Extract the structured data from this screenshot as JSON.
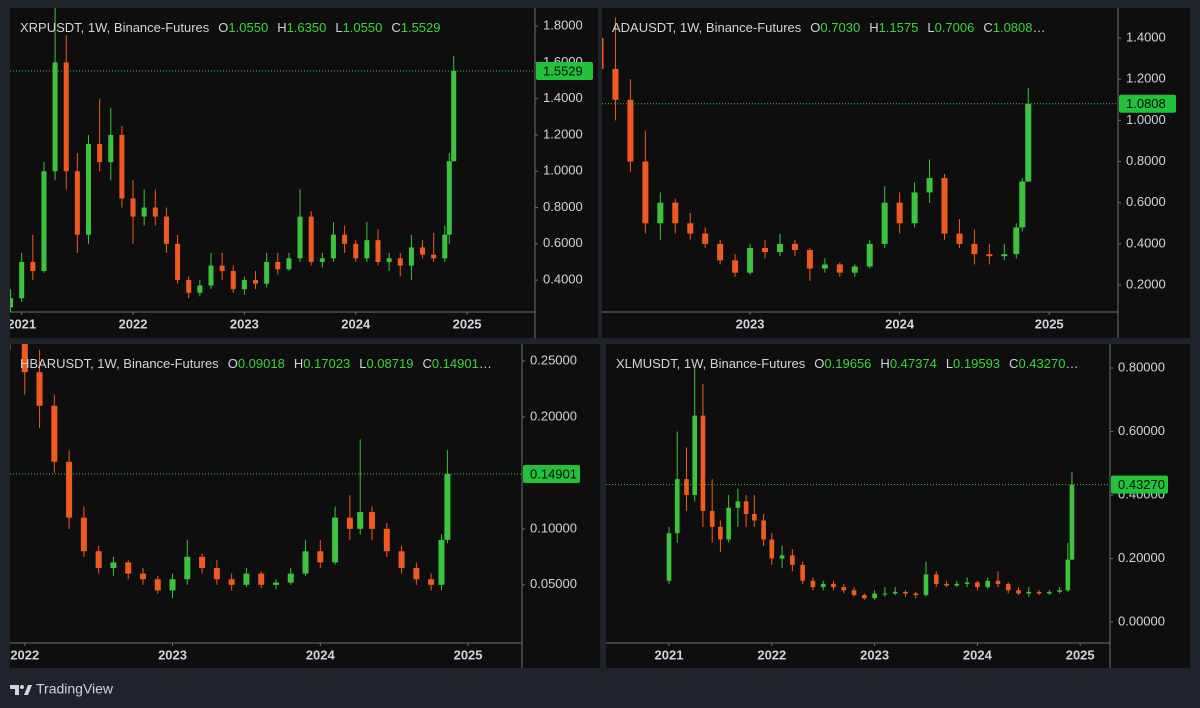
{
  "chart_data": [
    {
      "type": "candlestick",
      "title": "XRPUSDT, 1W, Binance-Futures",
      "ohlc": [
        {
          "key": "O",
          "value": 1.055,
          "label": "1.0550"
        },
        {
          "key": "H",
          "value": 1.635,
          "label": "1.6350"
        },
        {
          "key": "L",
          "value": 1.055,
          "label": "1.0550"
        },
        {
          "key": "C",
          "value": 1.5529,
          "label": "1.5529"
        }
      ],
      "last_price": {
        "value": 1.5529,
        "label": "1.5529"
      },
      "x": [
        2020.9,
        2021.0,
        2021.1,
        2021.2,
        2021.3,
        2021.4,
        2021.5,
        2021.6,
        2021.7,
        2021.8,
        2021.9,
        2022.0,
        2022.1,
        2022.2,
        2022.3,
        2022.4,
        2022.5,
        2022.6,
        2022.7,
        2022.8,
        2022.9,
        2023.0,
        2023.1,
        2023.2,
        2023.3,
        2023.4,
        2023.5,
        2023.6,
        2023.7,
        2023.8,
        2023.9,
        2024.0,
        2024.1,
        2024.2,
        2024.3,
        2024.4,
        2024.5,
        2024.6,
        2024.7,
        2024.8,
        2024.84,
        2024.88
      ],
      "open": [
        0.25,
        0.3,
        0.5,
        0.45,
        1.0,
        1.6,
        1.0,
        0.65,
        1.15,
        1.05,
        1.2,
        0.85,
        0.75,
        0.8,
        0.75,
        0.6,
        0.4,
        0.33,
        0.37,
        0.48,
        0.45,
        0.35,
        0.4,
        0.38,
        0.5,
        0.46,
        0.52,
        0.75,
        0.5,
        0.52,
        0.65,
        0.6,
        0.52,
        0.62,
        0.5,
        0.52,
        0.48,
        0.58,
        0.54,
        0.52,
        0.65,
        1.055
      ],
      "high": [
        0.35,
        0.55,
        0.65,
        1.05,
        1.9,
        1.75,
        1.1,
        1.2,
        1.4,
        1.35,
        1.25,
        0.95,
        0.9,
        0.9,
        0.8,
        0.65,
        0.42,
        0.4,
        0.55,
        0.55,
        0.48,
        0.42,
        0.45,
        0.55,
        0.55,
        0.55,
        0.9,
        0.78,
        0.55,
        0.72,
        0.7,
        0.62,
        0.72,
        0.68,
        0.55,
        0.55,
        0.65,
        0.62,
        0.66,
        0.7,
        1.1,
        1.635
      ],
      "low": [
        0.22,
        0.28,
        0.4,
        0.44,
        0.95,
        0.9,
        0.55,
        0.6,
        1.0,
        0.95,
        0.8,
        0.6,
        0.7,
        0.7,
        0.55,
        0.38,
        0.3,
        0.31,
        0.35,
        0.4,
        0.33,
        0.32,
        0.35,
        0.36,
        0.43,
        0.45,
        0.5,
        0.48,
        0.47,
        0.5,
        0.55,
        0.5,
        0.5,
        0.48,
        0.45,
        0.42,
        0.4,
        0.52,
        0.5,
        0.5,
        0.6,
        1.055
      ],
      "close": [
        0.3,
        0.5,
        0.45,
        1.0,
        1.6,
        1.0,
        0.65,
        1.15,
        1.05,
        1.2,
        0.85,
        0.75,
        0.8,
        0.75,
        0.6,
        0.4,
        0.33,
        0.37,
        0.48,
        0.45,
        0.35,
        0.4,
        0.38,
        0.5,
        0.46,
        0.52,
        0.75,
        0.5,
        0.52,
        0.65,
        0.6,
        0.52,
        0.62,
        0.5,
        0.52,
        0.48,
        0.58,
        0.54,
        0.52,
        0.65,
        1.055,
        1.5529
      ],
      "xlim": [
        2020.895,
        2025.61
      ],
      "xticks": [
        2021,
        2022,
        2023,
        2024,
        2025
      ],
      "ylim": [
        0.224,
        1.9
      ],
      "yticks": [
        {
          "value": 0.4,
          "label": "0.4000"
        },
        {
          "value": 0.6,
          "label": "0.6000"
        },
        {
          "value": 0.8,
          "label": "0.8000"
        },
        {
          "value": 1.0,
          "label": "1.0000"
        },
        {
          "value": 1.2,
          "label": "1.2000"
        },
        {
          "value": 1.4,
          "label": "1.4000"
        },
        {
          "value": 1.6,
          "label": "1.6000"
        },
        {
          "value": 1.8,
          "label": "1.8000"
        }
      ],
      "up_color": "#3cc43c",
      "down_color": "#f05a1e"
    },
    {
      "type": "candlestick",
      "title": "ADAUSDT, 1W, Binance-Futures",
      "ohlc": [
        {
          "key": "O",
          "value": 0.703,
          "label": "0.7030"
        },
        {
          "key": "H",
          "value": 1.1575,
          "label": "1.1575"
        },
        {
          "key": "L",
          "value": 0.7006,
          "label": "0.7006"
        },
        {
          "key": "C",
          "value": 1.0808,
          "label": "1.0808"
        }
      ],
      "last_price": {
        "value": 1.0808,
        "label": "1.0808"
      },
      "x": [
        2022.0,
        2022.1,
        2022.2,
        2022.3,
        2022.4,
        2022.5,
        2022.6,
        2022.7,
        2022.8,
        2022.9,
        2023.0,
        2023.1,
        2023.2,
        2023.3,
        2023.4,
        2023.5,
        2023.6,
        2023.7,
        2023.8,
        2023.9,
        2024.0,
        2024.1,
        2024.2,
        2024.3,
        2024.4,
        2024.5,
        2024.6,
        2024.7,
        2024.78,
        2024.82,
        2024.86
      ],
      "open": [
        1.4,
        1.25,
        1.1,
        0.8,
        0.5,
        0.6,
        0.5,
        0.45,
        0.4,
        0.32,
        0.26,
        0.38,
        0.36,
        0.4,
        0.37,
        0.28,
        0.3,
        0.26,
        0.29,
        0.4,
        0.6,
        0.5,
        0.65,
        0.72,
        0.45,
        0.4,
        0.35,
        0.34,
        0.35,
        0.48,
        0.703
      ],
      "high": [
        1.55,
        1.5,
        1.2,
        0.95,
        0.65,
        0.62,
        0.55,
        0.48,
        0.42,
        0.35,
        0.4,
        0.42,
        0.45,
        0.42,
        0.38,
        0.33,
        0.31,
        0.3,
        0.42,
        0.68,
        0.65,
        0.7,
        0.81,
        0.74,
        0.52,
        0.47,
        0.4,
        0.4,
        0.5,
        0.72,
        1.1575
      ],
      "low": [
        1.2,
        1.0,
        0.75,
        0.45,
        0.42,
        0.45,
        0.42,
        0.38,
        0.3,
        0.24,
        0.25,
        0.33,
        0.34,
        0.34,
        0.22,
        0.26,
        0.24,
        0.24,
        0.28,
        0.38,
        0.45,
        0.48,
        0.6,
        0.42,
        0.38,
        0.3,
        0.3,
        0.32,
        0.33,
        0.46,
        0.7006
      ],
      "close": [
        1.25,
        1.1,
        0.8,
        0.5,
        0.6,
        0.5,
        0.45,
        0.4,
        0.32,
        0.26,
        0.38,
        0.36,
        0.4,
        0.37,
        0.28,
        0.3,
        0.26,
        0.29,
        0.4,
        0.6,
        0.5,
        0.65,
        0.72,
        0.45,
        0.4,
        0.35,
        0.34,
        0.35,
        0.48,
        0.703,
        1.0808
      ],
      "xlim": [
        2022.01,
        2025.46
      ],
      "xticks": [
        2023,
        2024,
        2025
      ],
      "ylim": [
        0.069,
        1.546
      ],
      "yticks": [
        {
          "value": 0.2,
          "label": "0.2000"
        },
        {
          "value": 0.4,
          "label": "0.4000"
        },
        {
          "value": 0.6,
          "label": "0.6000"
        },
        {
          "value": 0.8,
          "label": "0.8000"
        },
        {
          "value": 1.0,
          "label": "1.0000"
        },
        {
          "value": 1.2,
          "label": "1.2000"
        },
        {
          "value": 1.4,
          "label": "1.4000"
        }
      ],
      "up_color": "#3cc43c",
      "down_color": "#f05a1e"
    },
    {
      "type": "candlestick",
      "title": "HBARUSDT, 1W, Binance-Futures",
      "ohlc": [
        {
          "key": "O",
          "value": 0.09018,
          "label": "0.09018"
        },
        {
          "key": "H",
          "value": 0.17023,
          "label": "0.17023"
        },
        {
          "key": "L",
          "value": 0.08719,
          "label": "0.08719"
        },
        {
          "key": "C",
          "value": 0.14901,
          "label": "0.14901"
        }
      ],
      "last_price": {
        "value": 0.14901,
        "label": "0.14901"
      },
      "x": [
        2021.9,
        2022.0,
        2022.1,
        2022.2,
        2022.3,
        2022.4,
        2022.5,
        2022.6,
        2022.7,
        2022.8,
        2022.9,
        2023.0,
        2023.1,
        2023.2,
        2023.3,
        2023.4,
        2023.5,
        2023.6,
        2023.7,
        2023.8,
        2023.9,
        2024.0,
        2024.1,
        2024.2,
        2024.27,
        2024.35,
        2024.45,
        2024.55,
        2024.65,
        2024.75,
        2024.82,
        2024.86
      ],
      "open": [
        0.3,
        0.27,
        0.24,
        0.21,
        0.16,
        0.11,
        0.08,
        0.065,
        0.07,
        0.06,
        0.055,
        0.045,
        0.055,
        0.075,
        0.065,
        0.055,
        0.05,
        0.06,
        0.05,
        0.052,
        0.06,
        0.08,
        0.07,
        0.11,
        0.1,
        0.115,
        0.1,
        0.08,
        0.065,
        0.055,
        0.05,
        0.09018
      ],
      "high": [
        0.32,
        0.3,
        0.26,
        0.22,
        0.17,
        0.12,
        0.085,
        0.075,
        0.072,
        0.065,
        0.058,
        0.06,
        0.09,
        0.078,
        0.072,
        0.06,
        0.065,
        0.062,
        0.055,
        0.065,
        0.09,
        0.09,
        0.12,
        0.13,
        0.18,
        0.12,
        0.105,
        0.085,
        0.07,
        0.06,
        0.095,
        0.17023
      ],
      "low": [
        0.26,
        0.22,
        0.19,
        0.15,
        0.1,
        0.075,
        0.06,
        0.058,
        0.055,
        0.05,
        0.042,
        0.038,
        0.05,
        0.06,
        0.05,
        0.045,
        0.048,
        0.047,
        0.046,
        0.05,
        0.058,
        0.065,
        0.068,
        0.09,
        0.095,
        0.09,
        0.075,
        0.06,
        0.05,
        0.045,
        0.045,
        0.08719
      ],
      "close": [
        0.27,
        0.24,
        0.21,
        0.16,
        0.11,
        0.08,
        0.065,
        0.07,
        0.06,
        0.055,
        0.045,
        0.055,
        0.075,
        0.065,
        0.055,
        0.05,
        0.06,
        0.05,
        0.052,
        0.06,
        0.08,
        0.07,
        0.11,
        0.1,
        0.115,
        0.1,
        0.08,
        0.065,
        0.055,
        0.05,
        0.09018,
        0.14901
      ],
      "xlim": [
        2021.9,
        2025.365
      ],
      "xticks": [
        2022,
        2023,
        2024,
        2025
      ],
      "ylim": [
        -0.002,
        0.2652
      ],
      "yticks": [
        {
          "value": 0.05,
          "label": "0.05000"
        },
        {
          "value": 0.1,
          "label": "0.10000"
        },
        {
          "value": 0.15,
          "label": "0.15000"
        },
        {
          "value": 0.2,
          "label": "0.20000"
        },
        {
          "value": 0.25,
          "label": "0.25000"
        }
      ],
      "up_color": "#3cc43c",
      "down_color": "#f05a1e"
    },
    {
      "type": "candlestick",
      "title": "XLMUSDT, 1W, Binance-Futures",
      "ohlc": [
        {
          "key": "O",
          "value": 0.19656,
          "label": "0.19656"
        },
        {
          "key": "H",
          "value": 0.47374,
          "label": "0.47374"
        },
        {
          "key": "L",
          "value": 0.19593,
          "label": "0.19593"
        },
        {
          "key": "C",
          "value": 0.4327,
          "label": "0.43270"
        }
      ],
      "last_price": {
        "value": 0.4327,
        "label": "0.43270"
      },
      "x": [
        2021.0,
        2021.08,
        2021.17,
        2021.25,
        2021.33,
        2021.42,
        2021.5,
        2021.58,
        2021.67,
        2021.75,
        2021.83,
        2021.92,
        2022.0,
        2022.1,
        2022.2,
        2022.3,
        2022.4,
        2022.5,
        2022.6,
        2022.7,
        2022.8,
        2022.9,
        2023.0,
        2023.1,
        2023.2,
        2023.3,
        2023.4,
        2023.5,
        2023.6,
        2023.7,
        2023.8,
        2023.9,
        2024.0,
        2024.1,
        2024.2,
        2024.3,
        2024.4,
        2024.5,
        2024.6,
        2024.7,
        2024.8,
        2024.88,
        2024.92
      ],
      "open": [
        0.13,
        0.28,
        0.45,
        0.4,
        0.65,
        0.35,
        0.3,
        0.26,
        0.36,
        0.38,
        0.34,
        0.32,
        0.26,
        0.2,
        0.21,
        0.18,
        0.13,
        0.11,
        0.12,
        0.11,
        0.1,
        0.085,
        0.075,
        0.09,
        0.09,
        0.095,
        0.09,
        0.085,
        0.15,
        0.12,
        0.115,
        0.12,
        0.125,
        0.11,
        0.13,
        0.12,
        0.1,
        0.09,
        0.095,
        0.09,
        0.095,
        0.1,
        0.19656
      ],
      "high": [
        0.3,
        0.6,
        0.55,
        0.8,
        0.75,
        0.45,
        0.32,
        0.4,
        0.42,
        0.4,
        0.4,
        0.34,
        0.28,
        0.24,
        0.23,
        0.19,
        0.14,
        0.13,
        0.13,
        0.12,
        0.11,
        0.09,
        0.1,
        0.11,
        0.11,
        0.1,
        0.095,
        0.19,
        0.16,
        0.13,
        0.13,
        0.14,
        0.13,
        0.14,
        0.16,
        0.125,
        0.11,
        0.11,
        0.1,
        0.1,
        0.11,
        0.25,
        0.47374
      ],
      "low": [
        0.12,
        0.25,
        0.35,
        0.38,
        0.3,
        0.25,
        0.22,
        0.25,
        0.3,
        0.3,
        0.3,
        0.24,
        0.18,
        0.17,
        0.16,
        0.12,
        0.1,
        0.1,
        0.1,
        0.09,
        0.08,
        0.07,
        0.07,
        0.08,
        0.085,
        0.08,
        0.075,
        0.08,
        0.11,
        0.11,
        0.11,
        0.11,
        0.1,
        0.105,
        0.11,
        0.09,
        0.085,
        0.08,
        0.085,
        0.085,
        0.09,
        0.095,
        0.19593
      ],
      "close": [
        0.28,
        0.45,
        0.4,
        0.65,
        0.35,
        0.3,
        0.26,
        0.36,
        0.38,
        0.34,
        0.32,
        0.26,
        0.2,
        0.21,
        0.18,
        0.13,
        0.11,
        0.12,
        0.11,
        0.1,
        0.085,
        0.075,
        0.09,
        0.09,
        0.095,
        0.09,
        0.085,
        0.15,
        0.12,
        0.115,
        0.12,
        0.125,
        0.11,
        0.13,
        0.12,
        0.1,
        0.09,
        0.095,
        0.09,
        0.095,
        0.1,
        0.19656,
        0.4327
      ],
      "xlim": [
        2020.387,
        2025.29
      ],
      "xticks": [
        2021,
        2022,
        2023,
        2024,
        2025
      ],
      "ylim": [
        -0.066,
        0.8756
      ],
      "yticks": [
        {
          "value": 0,
          "label": "0.00000"
        },
        {
          "value": 0.2,
          "label": "0.20000"
        },
        {
          "value": 0.4,
          "label": "0.40000"
        },
        {
          "value": 0.6,
          "label": "0.60000"
        },
        {
          "value": 0.8,
          "label": "0.80000"
        }
      ],
      "up_color": "#3cc43c",
      "down_color": "#f05a1e"
    }
  ],
  "footer": {
    "brand": "TradingView"
  }
}
